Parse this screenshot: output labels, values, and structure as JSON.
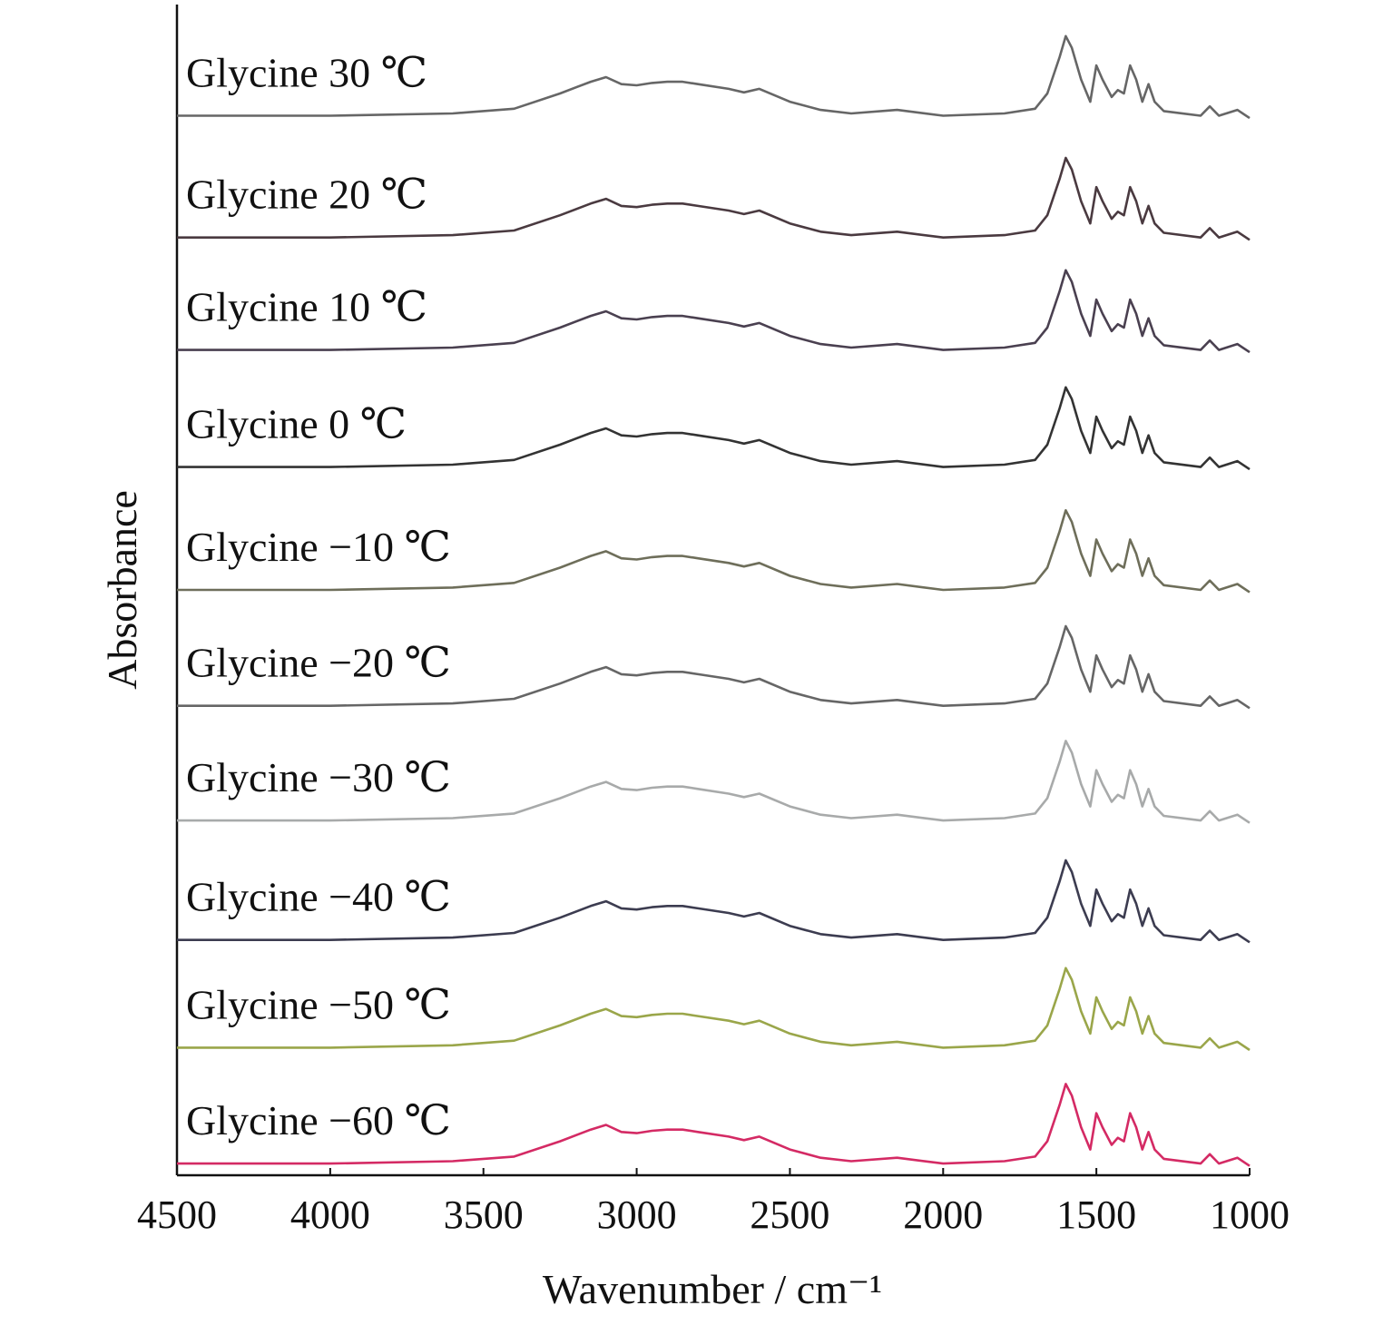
{
  "chart_data": {
    "type": "line",
    "x_label": "Wavenumber / cm⁻¹",
    "y_label": "Absorbance",
    "xlim": [
      4500,
      1000
    ],
    "ylim": [
      0,
      100
    ],
    "xticks": [
      4500,
      4000,
      3500,
      3000,
      2500,
      2000,
      1500,
      1000
    ],
    "grid": false,
    "x": [
      4500,
      4000,
      3600,
      3400,
      3250,
      3150,
      3100,
      3050,
      3000,
      2950,
      2900,
      2850,
      2800,
      2700,
      2650,
      2600,
      2500,
      2400,
      2300,
      2150,
      2000,
      1800,
      1700,
      1660,
      1620,
      1600,
      1580,
      1550,
      1520,
      1500,
      1480,
      1450,
      1430,
      1410,
      1390,
      1370,
      1350,
      1330,
      1310,
      1280,
      1160,
      1130,
      1100,
      1040,
      1000
    ],
    "series": [
      {
        "name": "Glycine 30 ℃",
        "color": "#666666",
        "values": [
          90.5,
          90.5,
          90.7,
          91.1,
          92.4,
          93.4,
          93.8,
          93.2,
          93.1,
          93.3,
          93.4,
          93.4,
          93.2,
          92.8,
          92.5,
          92.8,
          91.7,
          91,
          90.7,
          91,
          90.5,
          90.7,
          91.1,
          92.4,
          95.5,
          97.3,
          96.3,
          93.6,
          91.7,
          94.8,
          93.6,
          92.1,
          92.7,
          92.4,
          94.8,
          93.6,
          91.7,
          93.2,
          91.7,
          90.9,
          90.5,
          91.3,
          90.5,
          91,
          90.3
        ]
      },
      {
        "name": "Glycine 20 ℃",
        "color": "#4a3a40",
        "values": [
          80.1,
          80.1,
          80.3,
          80.7,
          82,
          83,
          83.4,
          82.8,
          82.7,
          82.9,
          83,
          83,
          82.8,
          82.4,
          82.1,
          82.4,
          81.3,
          80.6,
          80.3,
          80.6,
          80.1,
          80.3,
          80.7,
          82,
          85.1,
          86.9,
          85.9,
          83.2,
          81.3,
          84.4,
          83.2,
          81.7,
          82.3,
          82,
          84.4,
          83.2,
          81.3,
          82.8,
          81.3,
          80.5,
          80.1,
          80.9,
          80.1,
          80.6,
          79.9
        ]
      },
      {
        "name": "Glycine 10 ℃",
        "color": "#4a4050",
        "values": [
          70.5,
          70.5,
          70.7,
          71.1,
          72.4,
          73.4,
          73.8,
          73.2,
          73.1,
          73.3,
          73.4,
          73.4,
          73.2,
          72.8,
          72.5,
          72.8,
          71.7,
          71,
          70.7,
          71,
          70.5,
          70.7,
          71.1,
          72.4,
          75.5,
          77.3,
          76.3,
          73.6,
          71.7,
          74.8,
          73.6,
          72.1,
          72.7,
          72.4,
          74.8,
          73.6,
          71.7,
          73.2,
          71.7,
          70.9,
          70.5,
          71.3,
          70.5,
          71,
          70.3
        ]
      },
      {
        "name": "Glycine 0 ℃",
        "color": "#333333",
        "values": [
          60.5,
          60.5,
          60.7,
          61.1,
          62.4,
          63.4,
          63.8,
          63.2,
          63.1,
          63.3,
          63.4,
          63.4,
          63.2,
          62.8,
          62.5,
          62.8,
          61.7,
          61,
          60.7,
          61,
          60.5,
          60.7,
          61.1,
          62.4,
          65.5,
          67.3,
          66.3,
          63.6,
          61.7,
          64.8,
          63.6,
          62.1,
          62.7,
          62.4,
          64.8,
          63.6,
          61.7,
          63.2,
          61.7,
          60.9,
          60.5,
          61.3,
          60.5,
          61,
          60.3
        ]
      },
      {
        "name": "Glycine −10 ℃",
        "color": "#6e6e5a",
        "values": [
          50,
          50,
          50.2,
          50.6,
          51.9,
          52.9,
          53.3,
          52.7,
          52.6,
          52.8,
          52.9,
          52.9,
          52.7,
          52.3,
          52,
          52.3,
          51.2,
          50.5,
          50.2,
          50.5,
          50,
          50.2,
          50.6,
          51.9,
          55,
          56.8,
          55.8,
          53.1,
          51.2,
          54.3,
          53.1,
          51.6,
          52.2,
          51.9,
          54.3,
          53.1,
          51.2,
          52.7,
          51.2,
          50.4,
          50,
          50.8,
          50,
          50.5,
          49.8
        ]
      },
      {
        "name": "Glycine −20 ℃",
        "color": "#666666",
        "values": [
          40.1,
          40.1,
          40.3,
          40.7,
          42,
          43,
          43.4,
          42.8,
          42.7,
          42.9,
          43,
          43,
          42.8,
          42.4,
          42.1,
          42.4,
          41.3,
          40.6,
          40.3,
          40.6,
          40.1,
          40.3,
          40.7,
          42,
          45.1,
          46.9,
          45.9,
          43.2,
          41.3,
          44.4,
          43.2,
          41.7,
          42.3,
          42,
          44.4,
          43.2,
          41.3,
          42.8,
          41.3,
          40.5,
          40.1,
          40.9,
          40.1,
          40.6,
          39.9
        ]
      },
      {
        "name": "Glycine −30 ℃",
        "color": "#a8aaaa",
        "values": [
          30.3,
          30.3,
          30.5,
          30.9,
          32.2,
          33.2,
          33.6,
          33,
          32.9,
          33.1,
          33.2,
          33.2,
          33,
          32.6,
          32.3,
          32.6,
          31.5,
          30.8,
          30.5,
          30.8,
          30.3,
          30.5,
          30.9,
          32.2,
          35.3,
          37.1,
          36.1,
          33.4,
          31.5,
          34.6,
          33.4,
          31.9,
          32.5,
          32.2,
          34.6,
          33.4,
          31.5,
          33,
          31.5,
          30.7,
          30.3,
          31.1,
          30.3,
          30.8,
          30.1
        ]
      },
      {
        "name": "Glycine −40 ℃",
        "color": "#3c3c50",
        "values": [
          20.1,
          20.1,
          20.3,
          20.7,
          22,
          23,
          23.4,
          22.8,
          22.7,
          22.9,
          23,
          23,
          22.8,
          22.4,
          22.1,
          22.4,
          21.3,
          20.6,
          20.3,
          20.6,
          20.1,
          20.3,
          20.7,
          22,
          25.1,
          26.9,
          25.9,
          23.2,
          21.3,
          24.4,
          23.2,
          21.7,
          22.3,
          22,
          24.4,
          23.2,
          21.3,
          22.8,
          21.3,
          20.5,
          20.1,
          20.9,
          20.1,
          20.6,
          19.9
        ]
      },
      {
        "name": "Glycine −50 ℃",
        "color": "#9aa64a",
        "values": [
          10.9,
          10.9,
          11.1,
          11.5,
          12.8,
          13.8,
          14.2,
          13.6,
          13.5,
          13.7,
          13.8,
          13.8,
          13.6,
          13.2,
          12.9,
          13.2,
          12.1,
          11.4,
          11.1,
          11.4,
          10.9,
          11.1,
          11.5,
          12.8,
          15.9,
          17.7,
          16.7,
          14,
          12.1,
          15.2,
          14,
          12.5,
          13.1,
          12.8,
          15.2,
          14,
          12.1,
          13.6,
          12.1,
          11.3,
          10.9,
          11.7,
          10.9,
          11.4,
          10.7
        ]
      },
      {
        "name": "Glycine −60 ℃",
        "color": "#d42a64",
        "values": [
          1,
          1,
          1.2,
          1.6,
          2.9,
          3.9,
          4.3,
          3.7,
          3.6,
          3.8,
          3.9,
          3.9,
          3.7,
          3.3,
          3,
          3.3,
          2.2,
          1.5,
          1.2,
          1.5,
          1,
          1.2,
          1.6,
          2.9,
          6,
          7.8,
          6.8,
          4.1,
          2.2,
          5.3,
          4.1,
          2.6,
          3.2,
          2.9,
          5.3,
          4.1,
          2.2,
          3.7,
          2.2,
          1.4,
          1,
          1.8,
          1,
          1.5,
          0.8
        ]
      }
    ]
  }
}
